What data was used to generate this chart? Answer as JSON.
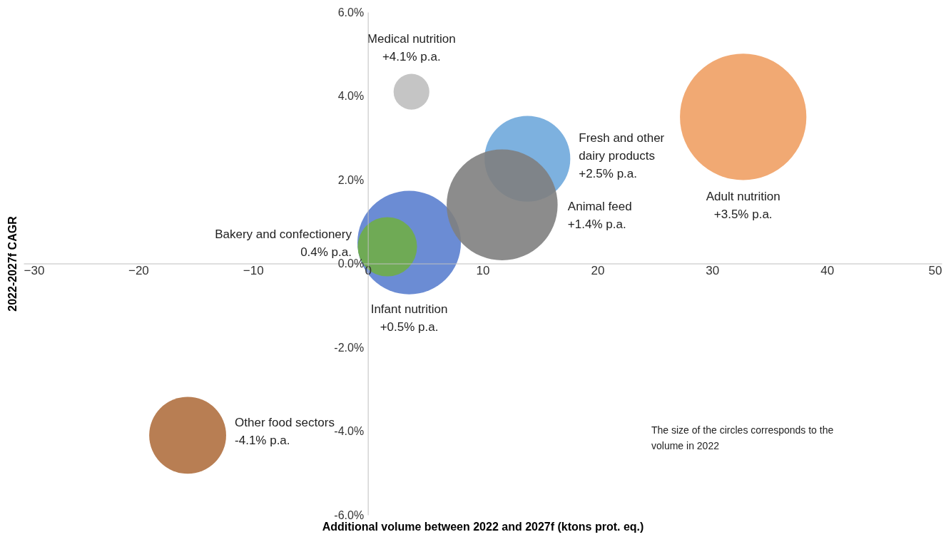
{
  "chart_data": {
    "type": "bubble",
    "xlabel": "Additional volume between 2022 and 2027f (ktons prot. eq.)",
    "ylabel": "2022-2027f CAGR",
    "xlim": [
      -30,
      50
    ],
    "xticks": [
      -30,
      -20,
      -10,
      0,
      10,
      20,
      30,
      40,
      50
    ],
    "ylim": [
      -6,
      6
    ],
    "yticks": [
      {
        "value": -6,
        "label": "-6.0%"
      },
      {
        "value": -4,
        "label": "-4.0%"
      },
      {
        "value": -2,
        "label": "-2.0%"
      },
      {
        "value": 0,
        "label": "0.0%"
      },
      {
        "value": 2,
        "label": "2.0%"
      },
      {
        "value": 4,
        "label": "4.0%"
      },
      {
        "value": 6,
        "label": "6.0%"
      }
    ],
    "grid": false,
    "series": [
      {
        "name": "Medical nutrition",
        "color": "#bfbfbf",
        "x": [
          3.8
        ],
        "values": [
          4.1
        ],
        "sizes": [
          0.08
        ],
        "value_labels": [
          "+4.1% p.a."
        ]
      },
      {
        "name": "Fresh and other dairy products",
        "color": "#6fa8dc",
        "x": [
          13.9
        ],
        "values": [
          2.5
        ],
        "sizes": [
          0.46
        ],
        "value_labels": [
          "+2.5% p.a."
        ]
      },
      {
        "name": "Adult nutrition",
        "color": "#f0a064",
        "x": [
          32.7
        ],
        "values": [
          3.5
        ],
        "sizes": [
          1
        ],
        "value_labels": [
          "+3.5% p.a."
        ]
      },
      {
        "name": "Infant nutrition",
        "color": "#5b7fcf",
        "x": [
          3.6
        ],
        "values": [
          0.5
        ],
        "sizes": [
          0.67
        ],
        "value_labels": [
          "+0.5% p.a."
        ]
      },
      {
        "name": "Animal feed",
        "color": "#7f7f7f",
        "x": [
          11.7
        ],
        "values": [
          1.4
        ],
        "sizes": [
          0.77
        ],
        "value_labels": [
          "+1.4% p.a."
        ]
      },
      {
        "name": "Bakery and confectionery",
        "color": "#70ad47",
        "x": [
          1.7
        ],
        "values": [
          0.4
        ],
        "sizes": [
          0.22
        ],
        "value_labels": [
          "0.4% p.a."
        ]
      },
      {
        "name": "Other food sectors",
        "color": "#b07040",
        "x": [
          -15.7
        ],
        "values": [
          -4.1
        ],
        "sizes": [
          0.37
        ],
        "value_labels": [
          "-4.1% p.a."
        ]
      }
    ],
    "annotations": [
      "The size of the circles corresponds to the volume in 2022"
    ]
  }
}
